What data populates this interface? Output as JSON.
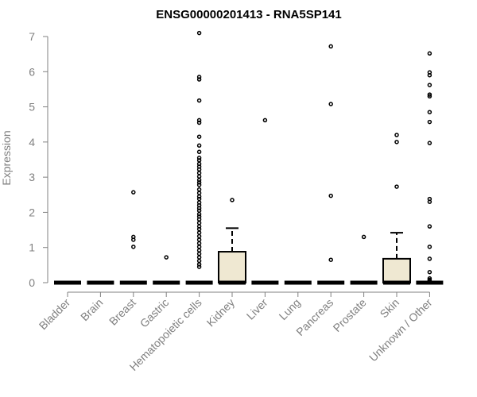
{
  "chart_data": {
    "type": "boxplot",
    "title": "ENSG00000201413 - RNA5SP141",
    "xlabel": "",
    "ylabel": "Expression",
    "ylim": [
      0,
      7
    ],
    "yticks": [
      0,
      1,
      2,
      3,
      4,
      5,
      6,
      7
    ],
    "categories": [
      "Bladder",
      "Brain",
      "Breast",
      "Gastric",
      "Hematopoietic cells",
      "Kidney",
      "Liver",
      "Lung",
      "Pancreas",
      "Prostate",
      "Skin",
      "Unknown / Other"
    ],
    "box_color": "#efe8d2",
    "grid": false,
    "legend": "none",
    "boxes": [
      {
        "q1": 0,
        "median": 0,
        "q3": 0,
        "whisker_low": 0,
        "whisker_high": 0,
        "outliers": []
      },
      {
        "q1": 0,
        "median": 0,
        "q3": 0,
        "whisker_low": 0,
        "whisker_high": 0,
        "outliers": []
      },
      {
        "q1": 0,
        "median": 0,
        "q3": 0,
        "whisker_low": 0,
        "whisker_high": 0,
        "outliers": [
          2.57,
          1.3,
          1.22,
          1.02
        ]
      },
      {
        "q1": 0,
        "median": 0,
        "q3": 0,
        "whisker_low": 0,
        "whisker_high": 0,
        "outliers": [
          0.72
        ]
      },
      {
        "q1": 0,
        "median": 0,
        "q3": 0,
        "whisker_low": 0,
        "whisker_high": 0,
        "outliers": [
          7.1,
          5.85,
          5.78,
          5.18,
          4.62,
          4.55,
          4.15,
          3.9,
          3.72,
          3.55,
          3.48,
          3.38,
          3.3,
          3.22,
          3.12,
          3.02,
          2.92,
          2.85,
          2.78,
          2.65,
          2.55,
          2.45,
          2.38,
          2.28,
          2.2,
          2.12,
          2.05,
          1.95,
          1.88,
          1.8,
          1.7,
          1.6,
          1.52,
          1.42,
          1.32,
          1.22,
          1.12,
          1.02,
          0.92,
          0.82,
          0.72,
          0.62,
          0.52,
          0.45
        ]
      },
      {
        "q1": 0,
        "median": 0,
        "q3": 0.88,
        "whisker_low": 0,
        "whisker_high": 1.55,
        "outliers": [
          2.35
        ]
      },
      {
        "q1": 0,
        "median": 0,
        "q3": 0,
        "whisker_low": 0,
        "whisker_high": 0,
        "outliers": [
          4.62
        ]
      },
      {
        "q1": 0,
        "median": 0,
        "q3": 0,
        "whisker_low": 0,
        "whisker_high": 0,
        "outliers": []
      },
      {
        "q1": 0,
        "median": 0,
        "q3": 0,
        "whisker_low": 0,
        "whisker_high": 0,
        "outliers": [
          6.72,
          5.08,
          2.47,
          0.65
        ]
      },
      {
        "q1": 0,
        "median": 0,
        "q3": 0,
        "whisker_low": 0,
        "whisker_high": 0,
        "outliers": [
          1.3
        ]
      },
      {
        "q1": 0,
        "median": 0,
        "q3": 0.68,
        "whisker_low": 0,
        "whisker_high": 1.42,
        "outliers": [
          4.2,
          4.0,
          2.73
        ]
      },
      {
        "q1": 0,
        "median": 0,
        "q3": 0,
        "whisker_low": 0,
        "whisker_high": 0,
        "outliers": [
          6.52,
          5.98,
          5.9,
          5.62,
          5.35,
          5.3,
          4.85,
          4.57,
          3.97,
          2.38,
          2.3,
          1.6,
          1.02,
          0.68,
          0.3,
          0.12,
          0.08,
          0.05,
          0.03
        ]
      }
    ]
  }
}
